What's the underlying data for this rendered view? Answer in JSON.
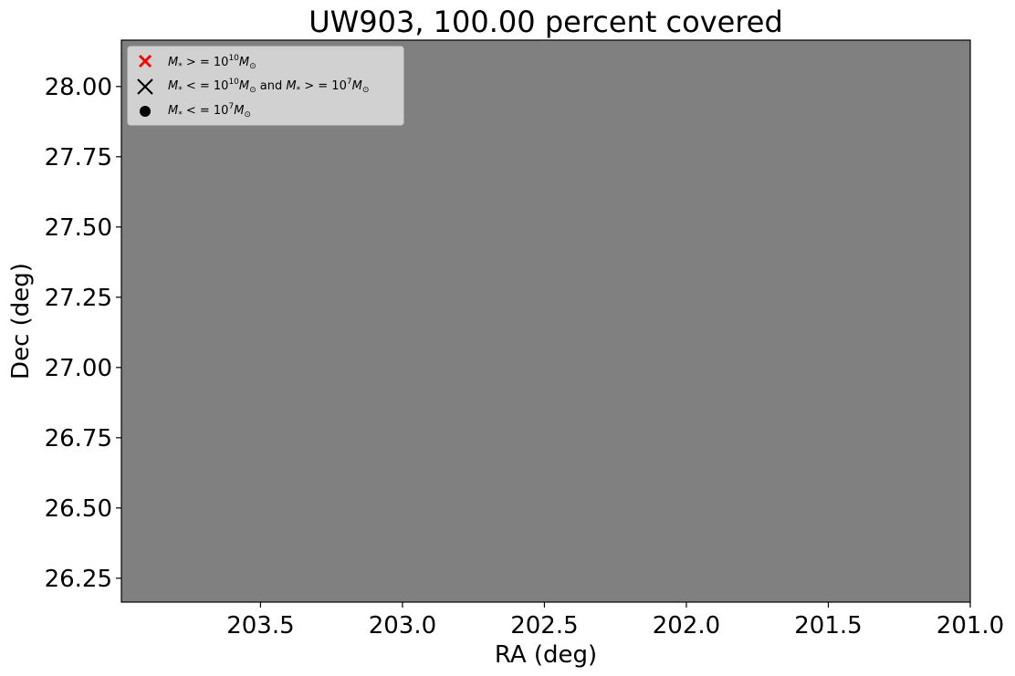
{
  "chart_data": {
    "type": "scatter",
    "title": "UW903, 100.00 percent covered",
    "xlabel": "RA (deg)",
    "ylabel": "Dec (deg)",
    "xlim": [
      203.99,
      201.0
    ],
    "ylim": [
      26.165,
      28.165
    ],
    "x_inverted": true,
    "x_ticks": [
      203.5,
      203.0,
      202.5,
      202.0,
      201.5,
      201.0
    ],
    "x_tick_labels": [
      "203.5",
      "203.0",
      "202.5",
      "202.0",
      "201.5",
      "201.0"
    ],
    "y_ticks": [
      26.25,
      26.5,
      26.75,
      27.0,
      27.25,
      27.5,
      27.75,
      28.0
    ],
    "y_tick_labels": [
      "26.25",
      "26.50",
      "26.75",
      "27.00",
      "27.25",
      "27.50",
      "27.75",
      "28.00"
    ],
    "background_fill": "#808080",
    "coverage_percent": 100.0,
    "grid": false,
    "legend_position": "top-left",
    "series": [
      {
        "name": "M* >= 10^10 M_sun",
        "marker": "filled-x",
        "color": "#ff0000",
        "points": []
      },
      {
        "name": "M* <= 10^10 M_sun and M* >= 10^7 M_sun",
        "marker": "x",
        "color": "#000000",
        "points": []
      },
      {
        "name": "M* <= 10^7 M_sun",
        "marker": "circle",
        "color": "#000000",
        "points": []
      }
    ]
  }
}
